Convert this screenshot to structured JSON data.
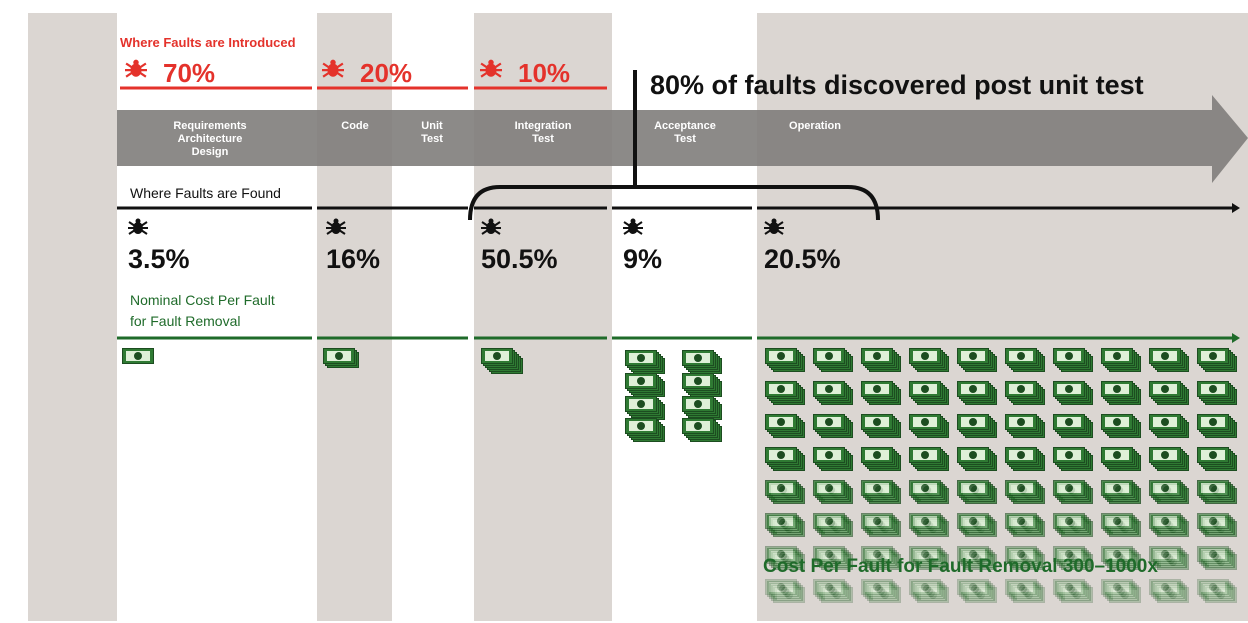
{
  "introduced": {
    "title": "Where Faults are Introduced",
    "items": [
      "70%",
      "20%",
      "10%"
    ]
  },
  "headline": "80% of faults discovered post unit test",
  "phases": [
    [
      "Requirements",
      "Architecture",
      "Design"
    ],
    [
      "Code"
    ],
    [
      "Unit",
      "Test"
    ],
    [
      "Integration",
      "Test"
    ],
    [
      "Acceptance",
      "Test"
    ],
    [
      "Operation"
    ]
  ],
  "found": {
    "title": "Where Faults are Found",
    "items": [
      "3.5%",
      "16%",
      "50.5%",
      "9%",
      "20.5%"
    ]
  },
  "cost": {
    "title_lines": [
      "Nominal Cost Per Fault",
      "for Fault Removal"
    ],
    "note": "Cost Per Fault for Fault Removal 300–1000x"
  }
}
